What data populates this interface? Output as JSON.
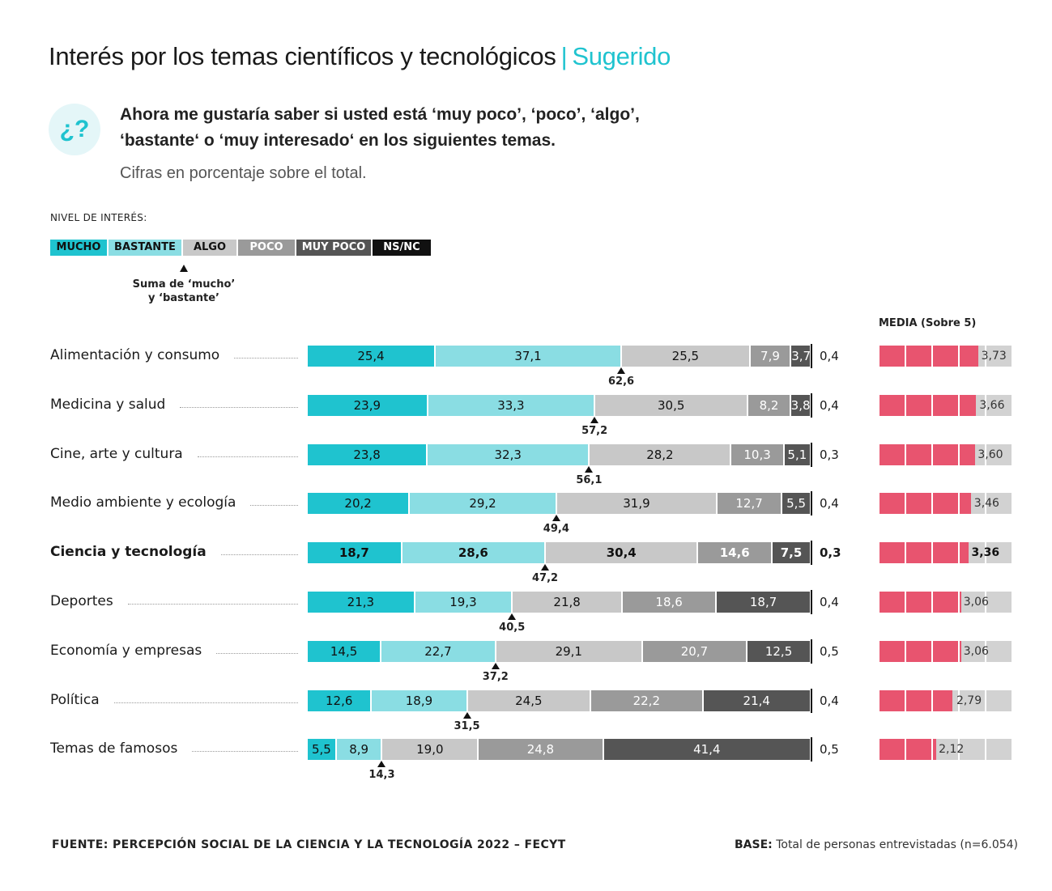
{
  "header": {
    "title": "Interés por los temas científicos y tecnológicos",
    "separator": "|",
    "subtitle": "Sugerido",
    "icon_glyph": "¿?",
    "question_line1": "Ahora me gustaría saber si usted está ‘muy poco’, ‘poco’, ‘algo’,",
    "question_line2": "‘bastante‘ o ‘muy interesado‘ en los siguientes temas.",
    "note": "Cifras en porcentaje sobre el total."
  },
  "legend": {
    "title": "NIVEL DE INTERÉS:",
    "items": [
      {
        "label": "MUCHO",
        "color": "#1fc3cf",
        "text_color": "#111111"
      },
      {
        "label": "BASTANTE",
        "color": "#8adde3",
        "text_color": "#111111"
      },
      {
        "label": "ALGO",
        "color": "#c8c8c8",
        "text_color": "#111111"
      },
      {
        "label": "POCO",
        "color": "#9a9a9a",
        "text_color": "#ffffff"
      },
      {
        "label": "MUY POCO",
        "color": "#555555",
        "text_color": "#ffffff"
      },
      {
        "label": "NS/NC",
        "color": "#111111",
        "text_color": "#ffffff"
      }
    ],
    "sum_note_line1": "Suma de ‘mucho’",
    "sum_note_line2": "y ‘bastante’"
  },
  "media_title": "MEDIA (Sobre 5)",
  "colors": {
    "media_fill": "#e8546f",
    "media_empty": "#d2d2d2"
  },
  "chart_data": {
    "type": "bar",
    "orientation": "horizontal",
    "stacked": true,
    "series_names": [
      "MUCHO",
      "BASTANTE",
      "ALGO",
      "POCO",
      "MUY POCO",
      "NS/NC"
    ],
    "rows": [
      {
        "label": "Alimentación y consumo",
        "values": [
          "25,4",
          "37,1",
          "25,5",
          "7,9",
          "3,7"
        ],
        "nsnc": "0,4",
        "sum": "62,6",
        "media": "3,73",
        "media_value": 3.73
      },
      {
        "label": "Medicina y salud",
        "values": [
          "23,9",
          "33,3",
          "30,5",
          "8,2",
          "3,8"
        ],
        "nsnc": "0,4",
        "sum": "57,2",
        "media": "3,66",
        "media_value": 3.66
      },
      {
        "label": "Cine, arte y cultura",
        "values": [
          "23,8",
          "32,3",
          "28,2",
          "10,3",
          "5,1"
        ],
        "nsnc": "0,3",
        "sum": "56,1",
        "media": "3,60",
        "media_value": 3.6
      },
      {
        "label": "Medio ambiente y ecología",
        "values": [
          "20,2",
          "29,2",
          "31,9",
          "12,7",
          "5,5"
        ],
        "nsnc": "0,4",
        "sum": "49,4",
        "media": "3,46",
        "media_value": 3.46
      },
      {
        "label": "Ciencia y tecnología",
        "values": [
          "18,7",
          "28,6",
          "30,4",
          "14,6",
          "7,5"
        ],
        "nsnc": "0,3",
        "sum": "47,2",
        "media": "3,36",
        "media_value": 3.36,
        "highlight": true
      },
      {
        "label": "Deportes",
        "values": [
          "21,3",
          "19,3",
          "21,8",
          "18,6",
          "18,7"
        ],
        "nsnc": "0,4",
        "sum": "40,5",
        "media": "3,06",
        "media_value": 3.06
      },
      {
        "label": "Economía y empresas",
        "values": [
          "14,5",
          "22,7",
          "29,1",
          "20,7",
          "12,5"
        ],
        "nsnc": "0,5",
        "sum": "37,2",
        "media": "3,06",
        "media_value": 3.06
      },
      {
        "label": "Política",
        "values": [
          "12,6",
          "18,9",
          "24,5",
          "22,2",
          "21,4"
        ],
        "nsnc": "0,4",
        "sum": "31,5",
        "media": "2,79",
        "media_value": 2.79
      },
      {
        "label": "Temas de famosos",
        "values": [
          "5,5",
          "8,9",
          "19,0",
          "24,8",
          "41,4"
        ],
        "nsnc": "0,5",
        "sum": "14,3",
        "media": "2,12",
        "media_value": 2.12
      }
    ],
    "media_max": 5
  },
  "footer": {
    "source": "FUENTE: PERCEPCIÓN SOCIAL DE LA CIENCIA Y LA TECNOLOGÍA 2022 – FECYT",
    "base_label": "BASE:",
    "base_text": " Total de personas entrevistadas (n=6.054)"
  }
}
